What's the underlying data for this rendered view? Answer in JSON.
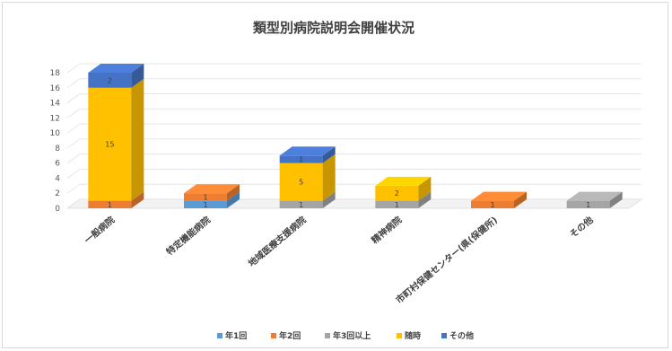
{
  "chart_data": {
    "type": "bar",
    "stacked": true,
    "style": "3d",
    "title": "類型別病院説明会開催状況",
    "xlabel": "",
    "ylabel": "",
    "ylim": [
      0,
      18
    ],
    "yticks": [
      0,
      2,
      4,
      6,
      8,
      10,
      12,
      14,
      16,
      18
    ],
    "grid": true,
    "legend_position": "bottom",
    "categories": [
      "一般病院",
      "特定機能病院",
      "地域医療支援病院",
      "精神病院",
      "市町村保健センター(県(保健所)",
      "その他"
    ],
    "series": [
      {
        "name": "年1回",
        "color": "#5b9bd5",
        "values": [
          0,
          1,
          0,
          0,
          0,
          0
        ]
      },
      {
        "name": "年2回",
        "color": "#ed7d31",
        "values": [
          1,
          1,
          0,
          0,
          1,
          0
        ]
      },
      {
        "name": "年3回以上",
        "color": "#a5a5a5",
        "values": [
          0,
          0,
          1,
          1,
          0,
          1
        ]
      },
      {
        "name": "随時",
        "color": "#ffc000",
        "values": [
          15,
          0,
          5,
          2,
          0,
          0
        ]
      },
      {
        "name": "その他",
        "color": "#4472c4",
        "values": [
          2,
          0,
          1,
          0,
          0,
          0
        ]
      }
    ]
  }
}
